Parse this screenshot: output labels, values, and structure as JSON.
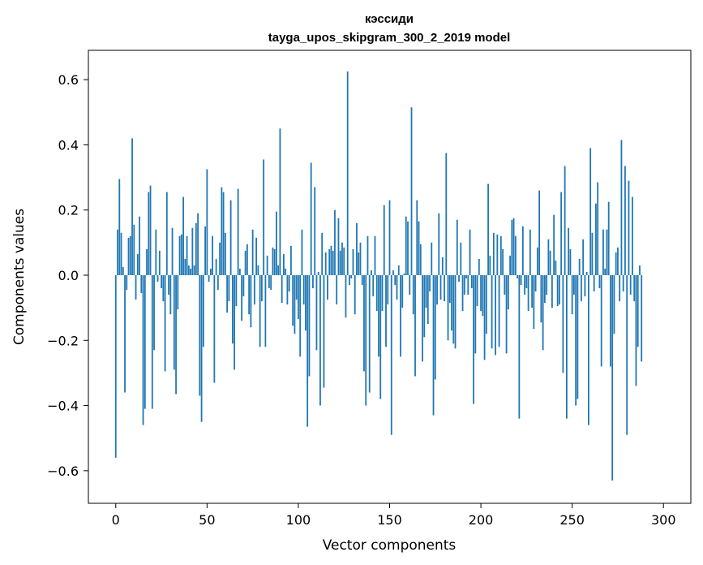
{
  "chart_data": {
    "type": "bar",
    "title": "кэссиди",
    "subtitle": "tayga_upos_skipgram_300_2_2019 model",
    "xlabel": "Vector components",
    "ylabel": "Components values",
    "xlim": [
      -15,
      315
    ],
    "ylim": [
      -0.7,
      0.69
    ],
    "xticks": [
      0,
      50,
      100,
      150,
      200,
      250,
      300
    ],
    "yticks": [
      -0.6,
      -0.4,
      -0.2,
      0.0,
      0.2,
      0.4,
      0.6
    ],
    "ytick_labels": [
      "−0.6",
      "−0.4",
      "−0.2",
      "0.0",
      "0.2",
      "0.4",
      "0.6"
    ],
    "grid": false,
    "bar_color": "#1f77b4",
    "values": [
      -0.56,
      0.14,
      0.295,
      0.13,
      0.025,
      -0.36,
      -0.045,
      0.115,
      0.12,
      0.42,
      0.155,
      -0.075,
      0.065,
      0.18,
      -0.055,
      -0.46,
      -0.41,
      0.08,
      0.255,
      0.275,
      -0.41,
      -0.23,
      0.14,
      -0.02,
      0.075,
      -0.04,
      -0.08,
      -0.295,
      0.255,
      -0.06,
      -0.12,
      0.145,
      -0.29,
      -0.365,
      -0.105,
      0.12,
      0.125,
      0.24,
      0.05,
      0.12,
      0.03,
      0.02,
      0.145,
      0.03,
      0.16,
      0.19,
      -0.37,
      -0.45,
      -0.22,
      0.15,
      0.325,
      -0.02,
      0.02,
      0.12,
      -0.33,
      0.05,
      -0.045,
      0.1,
      0.27,
      0.255,
      0.13,
      -0.115,
      -0.08,
      0.23,
      -0.21,
      -0.29,
      -0.095,
      0.265,
      0.02,
      -0.14,
      -0.065,
      0.075,
      0.095,
      -0.12,
      -0.16,
      0.14,
      -0.09,
      0.115,
      0.03,
      -0.22,
      -0.08,
      0.355,
      -0.22,
      0.06,
      -0.04,
      -0.045,
      0.085,
      0.08,
      0.195,
      0.03,
      0.45,
      -0.085,
      0.065,
      0.02,
      -0.09,
      -0.05,
      0.09,
      -0.155,
      -0.18,
      -0.075,
      -0.135,
      -0.25,
      0.14,
      -0.09,
      -0.17,
      -0.465,
      -0.31,
      0.345,
      -0.04,
      0.27,
      -0.23,
      0.01,
      -0.4,
      0.13,
      -0.345,
      0.07,
      -0.075,
      0.08,
      0.09,
      0.075,
      0.2,
      -0.09,
      0.175,
      0.075,
      0.1,
      0.085,
      -0.13,
      0.625,
      -0.03,
      -0.01,
      0.08,
      -0.12,
      0.16,
      0.07,
      0.1,
      -0.03,
      -0.295,
      -0.4,
      0.12,
      -0.36,
      0.015,
      -0.065,
      0.12,
      -0.11,
      -0.25,
      -0.38,
      -0.11,
      0.215,
      -0.22,
      -0.09,
      0.23,
      -0.49,
      0.015,
      -0.03,
      -0.075,
      0.03,
      -0.25,
      -0.1,
      0.005,
      0.18,
      0.165,
      -0.06,
      0.515,
      -0.12,
      -0.31,
      0.23,
      0.165,
      0.095,
      -0.265,
      -0.19,
      -0.1,
      -0.15,
      -0.05,
      0.1,
      -0.43,
      -0.32,
      -0.09,
      0.19,
      -0.075,
      0.055,
      -0.08,
      0.375,
      -0.2,
      -0.085,
      -0.17,
      -0.21,
      -0.225,
      0.17,
      -0.02,
      0.1,
      -0.11,
      -0.06,
      -0.01,
      -0.06,
      0.14,
      -0.04,
      -0.395,
      -0.24,
      -0.095,
      0.05,
      -0.11,
      -0.125,
      -0.26,
      -0.18,
      0.28,
      0.06,
      -0.225,
      0.13,
      -0.245,
      0.125,
      -0.22,
      0.12,
      0.08,
      -0.06,
      -0.24,
      -0.105,
      0.06,
      0.17,
      0.175,
      0.12,
      -0.01,
      -0.44,
      -0.03,
      0.15,
      -0.06,
      -0.04,
      -0.11,
      0.14,
      -0.1,
      -0.165,
      -0.05,
      0.085,
      0.26,
      -0.145,
      -0.23,
      -0.085,
      -0.06,
      0.11,
      0.075,
      -0.1,
      0.185,
      0.045,
      -0.095,
      -0.09,
      0.255,
      -0.3,
      0.335,
      -0.44,
      0.145,
      0.08,
      -0.12,
      -0.06,
      -0.4,
      -0.38,
      0.05,
      -0.08,
      0.11,
      -0.065,
      0.01,
      -0.46,
      0.39,
      0.13,
      -0.05,
      0.22,
      0.285,
      -0.04,
      -0.28,
      0.14,
      0.02,
      0.14,
      0.225,
      -0.28,
      -0.63,
      -0.18,
      0.07,
      0.085,
      -0.08,
      0.415,
      -0.05,
      0.335,
      -0.49,
      0.29,
      -0.06,
      0.24,
      -0.08,
      -0.34,
      -0.22,
      0.03,
      -0.265
    ]
  }
}
